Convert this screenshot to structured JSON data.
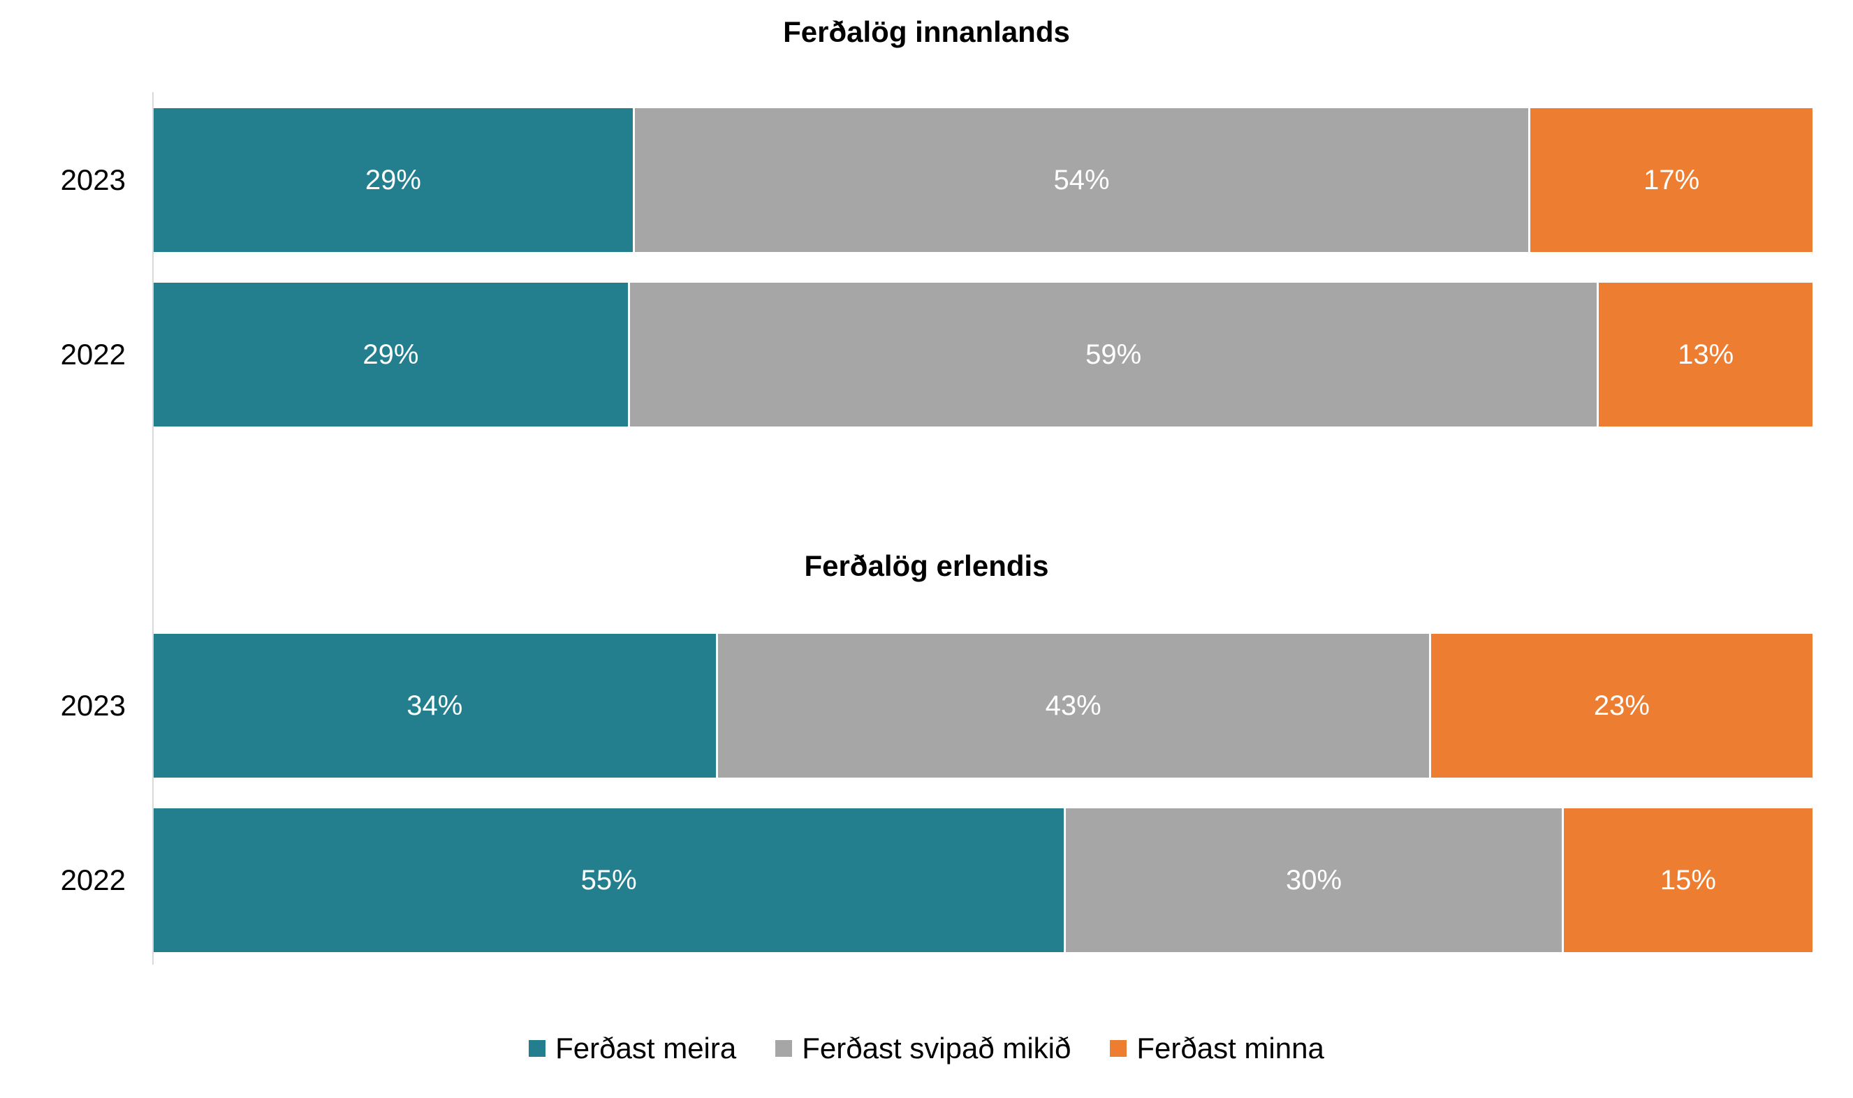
{
  "chart_data": {
    "type": "bar",
    "orientation": "horizontal",
    "stacked": "percent",
    "series": [
      {
        "name": "Ferðast meira",
        "color": "#237F8E"
      },
      {
        "name": "Ferðast svipað mikið",
        "color": "#A6A6A6"
      },
      {
        "name": "Ferðast minna",
        "color": "#ED7D31"
      }
    ],
    "panels": [
      {
        "title": "Ferðalög innanlands",
        "rows": [
          {
            "category": "2023",
            "values": [
              29,
              54,
              17
            ],
            "labels": [
              "29%",
              "54%",
              "17%"
            ]
          },
          {
            "category": "2022",
            "values": [
              29,
              59,
              13
            ],
            "labels": [
              "29%",
              "59%",
              "13%"
            ]
          }
        ]
      },
      {
        "title": "Ferðalög erlendis",
        "rows": [
          {
            "category": "2023",
            "values": [
              34,
              43,
              23
            ],
            "labels": [
              "34%",
              "43%",
              "23%"
            ]
          },
          {
            "category": "2022",
            "values": [
              55,
              30,
              15
            ],
            "labels": [
              "55%",
              "30%",
              "15%"
            ]
          }
        ]
      }
    ],
    "legend_position": "bottom",
    "grid": false
  }
}
